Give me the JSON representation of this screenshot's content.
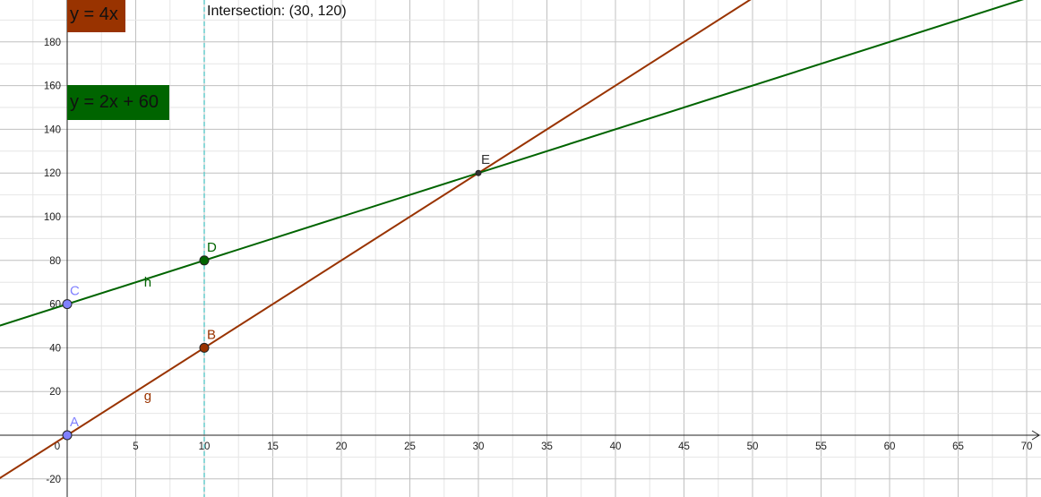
{
  "chart_data": {
    "type": "line",
    "xlim": [
      -5,
      70
    ],
    "ylim": [
      -25,
      200
    ],
    "x_ticks": [
      0,
      5,
      10,
      15,
      20,
      25,
      30,
      35,
      40,
      45,
      50,
      55,
      60,
      65,
      70
    ],
    "y_ticks": [
      -20,
      20,
      40,
      60,
      80,
      100,
      120,
      140,
      160,
      180
    ],
    "grid": true,
    "lines": [
      {
        "name": "g",
        "slope": 4,
        "intercept": 0,
        "color": "#993300",
        "label_x": 6,
        "label_y": 18
      },
      {
        "name": "h",
        "slope": 2,
        "intercept": 60,
        "color": "#006400",
        "label_x": 6,
        "label_y": 70
      }
    ],
    "vertical_line": {
      "x": 10,
      "color": "#66cccc"
    },
    "points": [
      {
        "name": "A",
        "x": 0,
        "y": 0,
        "color": "#8080ff",
        "label_color": "#8080ff",
        "show_marker": true
      },
      {
        "name": "B",
        "x": 10,
        "y": 40,
        "color": "#993300",
        "label_color": "#993300",
        "show_marker": true
      },
      {
        "name": "C",
        "x": 0,
        "y": 60,
        "color": "#8080ff",
        "label_color": "#8080ff",
        "show_marker": true
      },
      {
        "name": "D",
        "x": 10,
        "y": 80,
        "color": "#006400",
        "label_color": "#006400",
        "show_marker": true
      },
      {
        "name": "E",
        "x": 30,
        "y": 120,
        "color": "#333333",
        "label_color": "#333333",
        "show_marker": true
      }
    ],
    "annotations": {
      "g_equation": "y = 4x",
      "h_equation": "y = 2x + 60",
      "intersection": "Intersection: (30, 120)",
      "g_box_color": "#993300",
      "h_box_color": "#006400"
    }
  }
}
